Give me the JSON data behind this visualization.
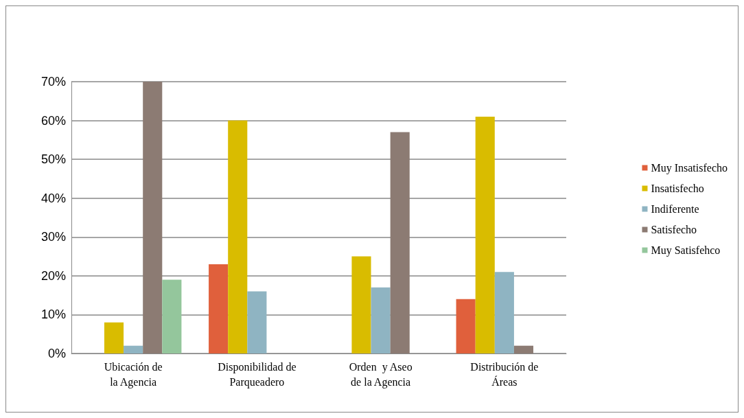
{
  "chart_data": {
    "type": "bar",
    "categories": [
      "Ubicación de la Agencia",
      "Disponibilidad de Parqueadero",
      "Orden  y Aseo de la Agencia",
      "Distribución de Áreas"
    ],
    "series": [
      {
        "name": "Muy Insatisfecho",
        "color": "#e0603c",
        "values": [
          0,
          0.23,
          0,
          0.14
        ]
      },
      {
        "name": "Insatisfecho",
        "color": "#d9bc00",
        "values": [
          0.08,
          0.6,
          0.25,
          0.61
        ]
      },
      {
        "name": "Indiferente",
        "color": "#8fb4c2",
        "values": [
          0.02,
          0.16,
          0.17,
          0.21
        ]
      },
      {
        "name": "Satisfecho",
        "color": "#8c7b73",
        "values": [
          0.7,
          0,
          0.57,
          0.02
        ]
      },
      {
        "name": "Muy Satisfehco",
        "color": "#94c69c",
        "values": [
          0.19,
          0,
          0,
          0
        ]
      }
    ],
    "ylim": [
      0,
      0.7
    ],
    "yticks": [
      {
        "value": 0,
        "label": "0%"
      },
      {
        "value": 0.1,
        "label": "10%"
      },
      {
        "value": 0.2,
        "label": "20%"
      },
      {
        "value": 0.3,
        "label": "30%"
      },
      {
        "value": 0.4,
        "label": "40%"
      },
      {
        "value": 0.5,
        "label": "50%"
      },
      {
        "value": 0.6,
        "label": "60%"
      },
      {
        "value": 0.7,
        "label": "70%"
      }
    ],
    "grid": "y",
    "legend": "right"
  }
}
